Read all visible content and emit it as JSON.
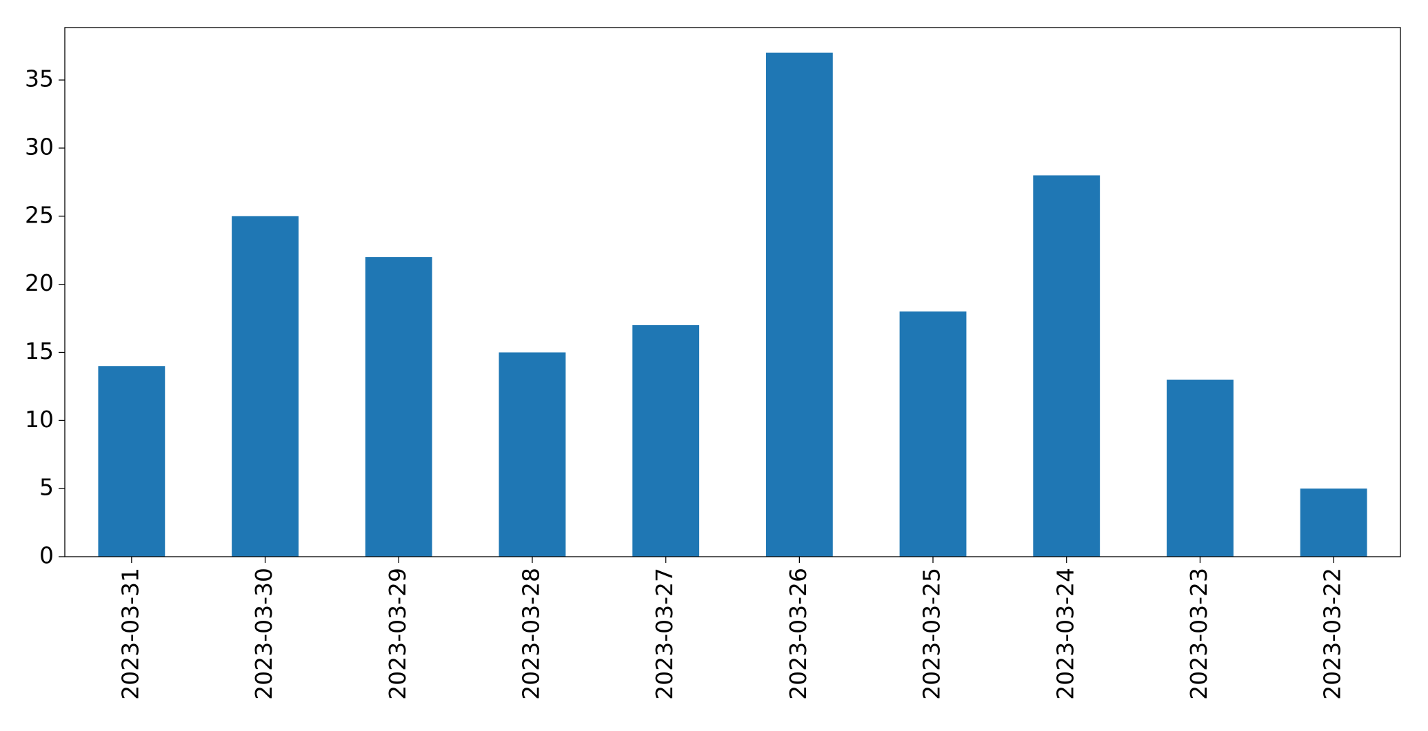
{
  "chart_data": {
    "type": "bar",
    "categories": [
      "2023-03-31",
      "2023-03-30",
      "2023-03-29",
      "2023-03-28",
      "2023-03-27",
      "2023-03-26",
      "2023-03-25",
      "2023-03-24",
      "2023-03-23",
      "2023-03-22"
    ],
    "values": [
      14,
      25,
      22,
      15,
      17,
      37,
      18,
      28,
      13,
      5
    ],
    "color": "#1f77b4",
    "ylim": [
      0,
      38.85
    ],
    "yticks": [
      0,
      5,
      10,
      15,
      20,
      25,
      30,
      35
    ],
    "grid": false
  }
}
